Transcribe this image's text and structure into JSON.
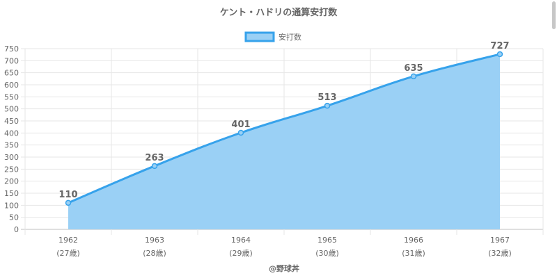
{
  "chart_data": {
    "type": "area",
    "title": "ケント・ハドリの通算安打数",
    "categories": [
      "1962",
      "1963",
      "1964",
      "1965",
      "1966",
      "1967"
    ],
    "sub_labels": [
      "(27歳)",
      "(28歳)",
      "(29歳)",
      "(30歳)",
      "(31歳)",
      "(32歳)"
    ],
    "series": [
      {
        "name": "安打数",
        "values": [
          110,
          263,
          401,
          513,
          635,
          727
        ]
      }
    ],
    "ylim": [
      0,
      750
    ],
    "ytick_step": 50,
    "grid": true,
    "legend": "top-center",
    "colors": {
      "line": "#36a2eb",
      "fill": "#9ad0f5"
    }
  },
  "credit": "@野球丼"
}
